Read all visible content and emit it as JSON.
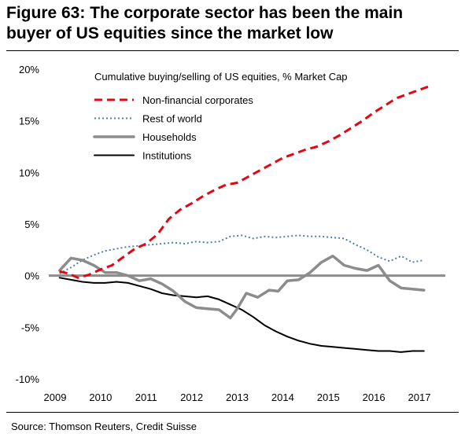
{
  "title_line1": "Figure 63: The corporate sector has been the main",
  "title_line2": "buyer of US equities since the market low",
  "source": "Source: Thomson Reuters, Credit Suisse",
  "chart_data": {
    "type": "line",
    "legend_title": "Cumulative buying/selling of US equities, % Market Cap",
    "legend_position": "top-center",
    "grid": false,
    "ylim": [
      -10,
      20
    ],
    "xlim": [
      2009,
      2017.4
    ],
    "yticks": [
      "20%",
      "15%",
      "10%",
      "5%",
      "0%",
      "-5%",
      "-10%"
    ],
    "ytick_values": [
      20,
      15,
      10,
      5,
      0,
      -5,
      -10
    ],
    "xticks": [
      "2009",
      "2010",
      "2011",
      "2012",
      "2013",
      "2014",
      "2015",
      "2016",
      "2017"
    ],
    "xtick_values": [
      2009,
      2010,
      2011,
      2012,
      2013,
      2014,
      2015,
      2016,
      2017
    ],
    "series": [
      {
        "name": "Non-financial corporates",
        "color": "#e30613",
        "style": "dashed",
        "x": [
          2009.1,
          2009.3,
          2009.5,
          2009.75,
          2010.0,
          2010.25,
          2010.5,
          2010.75,
          2011.0,
          2011.25,
          2011.5,
          2011.75,
          2012.0,
          2012.25,
          2012.5,
          2012.75,
          2013.0,
          2013.25,
          2013.5,
          2013.75,
          2014.0,
          2014.25,
          2014.5,
          2014.75,
          2015.0,
          2015.25,
          2015.5,
          2015.75,
          2016.0,
          2016.25,
          2016.5,
          2016.75,
          2017.0,
          2017.25
        ],
        "values": [
          0.4,
          0.2,
          -0.2,
          0.1,
          0.6,
          1.0,
          1.8,
          2.6,
          3.1,
          4.0,
          5.5,
          6.4,
          7.0,
          7.7,
          8.3,
          8.8,
          9.0,
          9.6,
          10.2,
          10.8,
          11.4,
          11.8,
          12.2,
          12.5,
          13.0,
          13.6,
          14.3,
          15.0,
          15.8,
          16.5,
          17.2,
          17.6,
          18.0,
          18.4
        ]
      },
      {
        "name": "Rest of world",
        "color": "#4a7fb0",
        "style": "dotted",
        "x": [
          2009.1,
          2009.35,
          2009.6,
          2009.85,
          2010.1,
          2010.35,
          2010.6,
          2010.85,
          2011.1,
          2011.35,
          2011.6,
          2011.85,
          2012.1,
          2012.35,
          2012.6,
          2012.85,
          2013.1,
          2013.35,
          2013.6,
          2013.85,
          2014.1,
          2014.35,
          2014.6,
          2014.85,
          2015.1,
          2015.35,
          2015.6,
          2015.85,
          2016.1,
          2016.35,
          2016.6,
          2016.85,
          2017.1
        ],
        "values": [
          0.2,
          0.8,
          1.5,
          2.0,
          2.4,
          2.6,
          2.8,
          2.9,
          3.0,
          3.1,
          3.2,
          3.1,
          3.3,
          3.2,
          3.3,
          3.8,
          3.9,
          3.6,
          3.8,
          3.7,
          3.8,
          3.9,
          3.8,
          3.8,
          3.7,
          3.6,
          3.0,
          2.5,
          1.8,
          1.4,
          1.9,
          1.3,
          1.5
        ]
      },
      {
        "name": "Households",
        "color": "#8c8c8c",
        "style": "solid",
        "x": [
          2009.1,
          2009.35,
          2009.6,
          2009.85,
          2010.1,
          2010.35,
          2010.6,
          2010.85,
          2011.1,
          2011.35,
          2011.6,
          2011.85,
          2012.1,
          2012.35,
          2012.6,
          2012.85,
          2013.0,
          2013.2,
          2013.45,
          2013.7,
          2013.9,
          2014.1,
          2014.35,
          2014.6,
          2014.85,
          2015.1,
          2015.35,
          2015.6,
          2015.85,
          2016.1,
          2016.35,
          2016.6,
          2016.85,
          2017.1
        ],
        "values": [
          0.5,
          1.7,
          1.5,
          1.0,
          0.3,
          0.3,
          0.0,
          -0.5,
          -0.3,
          -0.8,
          -1.5,
          -2.5,
          -3.1,
          -3.2,
          -3.3,
          -4.1,
          -3.2,
          -1.7,
          -2.1,
          -1.4,
          -1.5,
          -0.5,
          -0.4,
          0.3,
          1.3,
          1.9,
          1.0,
          0.7,
          0.5,
          1.0,
          -0.5,
          -1.2,
          -1.3,
          -1.4
        ]
      },
      {
        "name": "Institutions",
        "color": "#000000",
        "style": "solid",
        "x": [
          2009.1,
          2009.35,
          2009.6,
          2009.85,
          2010.1,
          2010.35,
          2010.6,
          2010.85,
          2011.1,
          2011.35,
          2011.6,
          2011.85,
          2012.1,
          2012.35,
          2012.6,
          2012.85,
          2013.1,
          2013.35,
          2013.6,
          2013.85,
          2014.1,
          2014.35,
          2014.6,
          2014.85,
          2015.1,
          2015.35,
          2015.6,
          2015.85,
          2016.1,
          2016.35,
          2016.6,
          2016.85,
          2017.1
        ],
        "values": [
          -0.2,
          -0.4,
          -0.6,
          -0.7,
          -0.7,
          -0.6,
          -0.7,
          -1.0,
          -1.3,
          -1.7,
          -1.9,
          -2.0,
          -2.1,
          -2.0,
          -2.3,
          -2.8,
          -3.3,
          -4.0,
          -4.8,
          -5.4,
          -5.9,
          -6.3,
          -6.6,
          -6.8,
          -6.9,
          -7.0,
          -7.1,
          -7.2,
          -7.3,
          -7.3,
          -7.4,
          -7.3,
          -7.3
        ]
      }
    ]
  }
}
